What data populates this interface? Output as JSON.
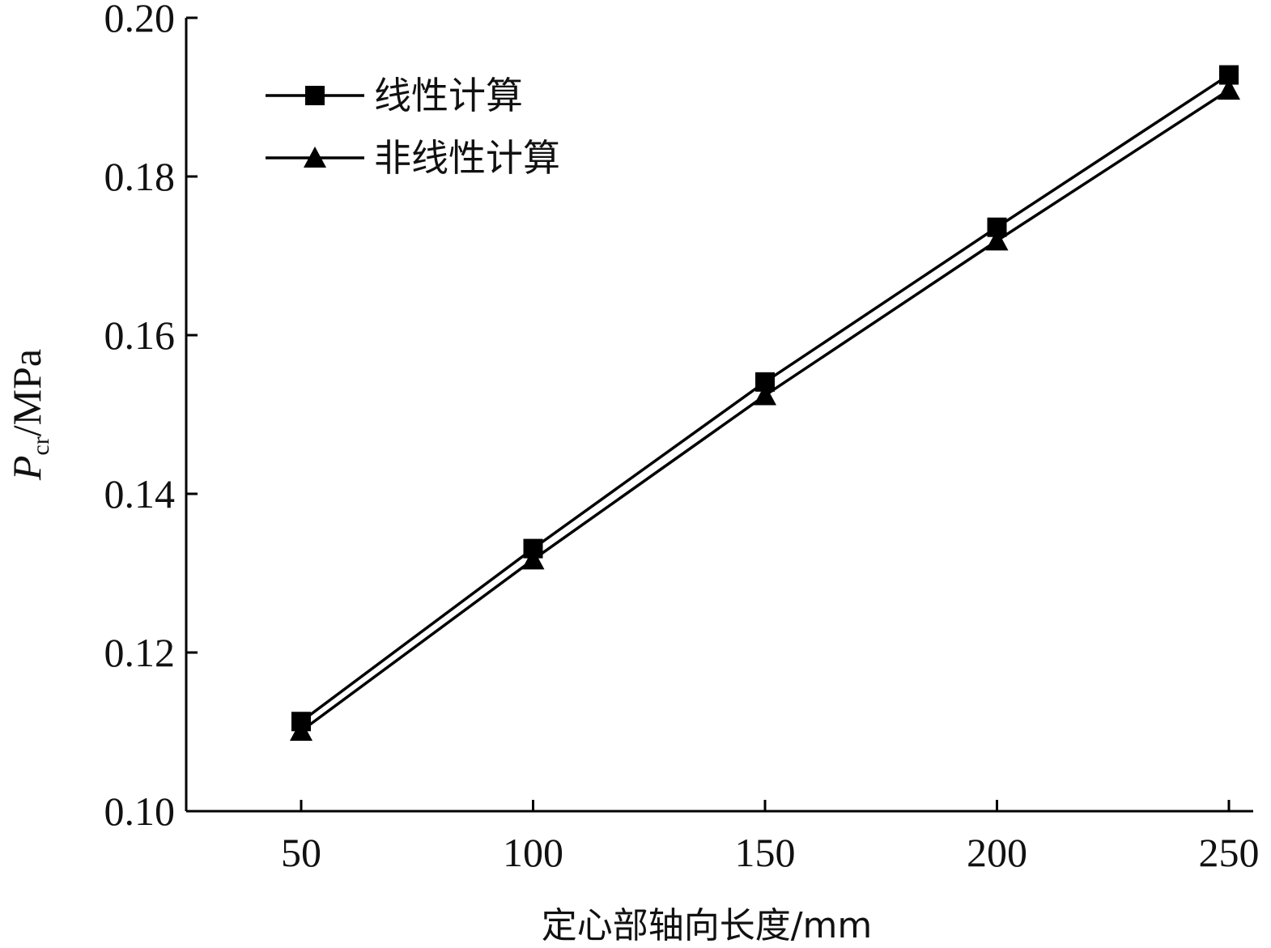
{
  "chart_data": {
    "type": "line",
    "x": [
      50,
      100,
      150,
      200,
      250
    ],
    "xlabel": "定心部轴向长度/mm",
    "ylabel": {
      "main": "P",
      "sub": "cr",
      "unit": "/MPa"
    },
    "xlim": [
      25,
      255
    ],
    "ylim": [
      0.1,
      0.2
    ],
    "xticks": [
      50,
      100,
      150,
      200,
      250
    ],
    "yticks": [
      "0.10",
      "0.12",
      "0.14",
      "0.16",
      "0.18",
      "0.20"
    ],
    "grid": false,
    "legend_position": "top-left",
    "series": [
      {
        "name": "线性计算",
        "marker": "square",
        "color": "#000000",
        "values": [
          0.1113,
          0.1331,
          0.1541,
          0.1736,
          0.1928
        ]
      },
      {
        "name": "非线性计算",
        "marker": "triangle",
        "color": "#000000",
        "values": [
          0.1101,
          0.1317,
          0.1524,
          0.1719,
          0.1909
        ]
      }
    ]
  }
}
